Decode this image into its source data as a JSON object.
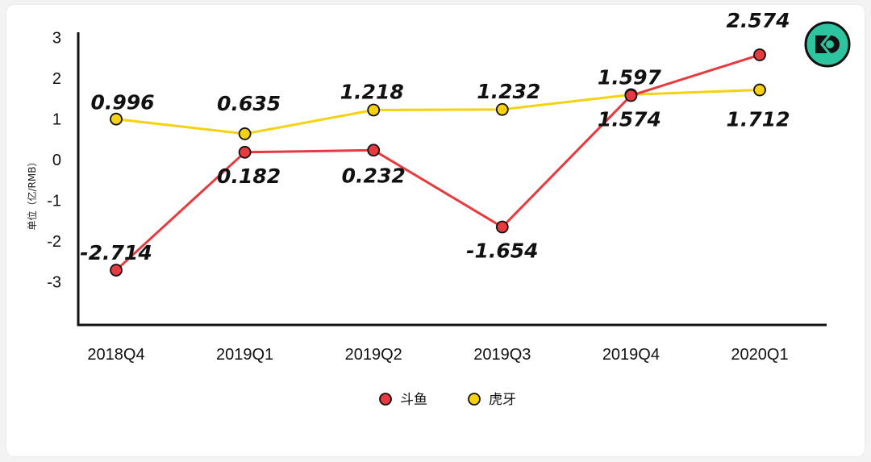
{
  "chart_data": {
    "type": "line",
    "categories": [
      "2018Q4",
      "2019Q1",
      "2019Q2",
      "2019Q3",
      "2019Q4",
      "2020Q1"
    ],
    "series": [
      {
        "name": "斗鱼",
        "values": [
          -2.714,
          0.182,
          0.232,
          -1.654,
          1.574,
          2.574
        ],
        "labels": [
          "-2.714",
          "0.182",
          "0.232",
          "-1.654",
          "1.574",
          "2.574"
        ],
        "color": "#e8393e"
      },
      {
        "name": "虎牙",
        "values": [
          0.996,
          0.635,
          1.218,
          1.232,
          1.597,
          1.712
        ],
        "labels": [
          "0.996",
          "0.635",
          "1.218",
          "1.232",
          "1.597",
          "1.712"
        ],
        "color": "#f5d10f"
      }
    ],
    "ylabel": "单位（亿/RMB）",
    "ylim": [
      -4,
      3
    ],
    "yticks": [
      "3",
      "2",
      "1",
      "0",
      "-1",
      "-2",
      "-3"
    ],
    "grid": false,
    "legend": "bottom-center"
  },
  "logo": {
    "icon": "ko-logo-icon",
    "color": "#2ec4a0"
  }
}
